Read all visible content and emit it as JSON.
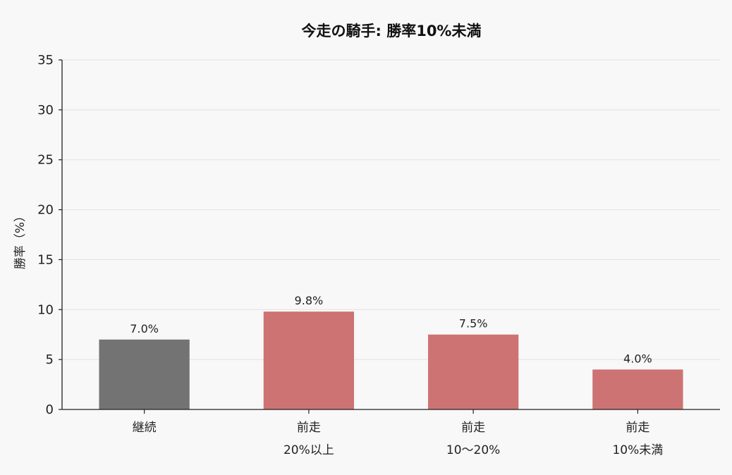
{
  "chart_data": {
    "type": "bar",
    "title": "今走の騎手: 勝率10%未満",
    "xlabel": "",
    "ylabel": "勝率（%）",
    "ylim": [
      0,
      35
    ],
    "yticks": [
      0,
      5,
      10,
      15,
      20,
      25,
      30,
      35
    ],
    "grid": true,
    "categories": [
      [
        "継続"
      ],
      [
        "前走",
        "20%以上"
      ],
      [
        "前走",
        "10〜20%"
      ],
      [
        "前走",
        "10%未満"
      ]
    ],
    "values": [
      7.0,
      9.8,
      7.5,
      4.0
    ],
    "data_labels": [
      "7.0%",
      "9.8%",
      "7.5%",
      "4.0%"
    ],
    "colors": [
      "#737373",
      "#cd7373",
      "#cd7373",
      "#cd7373"
    ]
  }
}
